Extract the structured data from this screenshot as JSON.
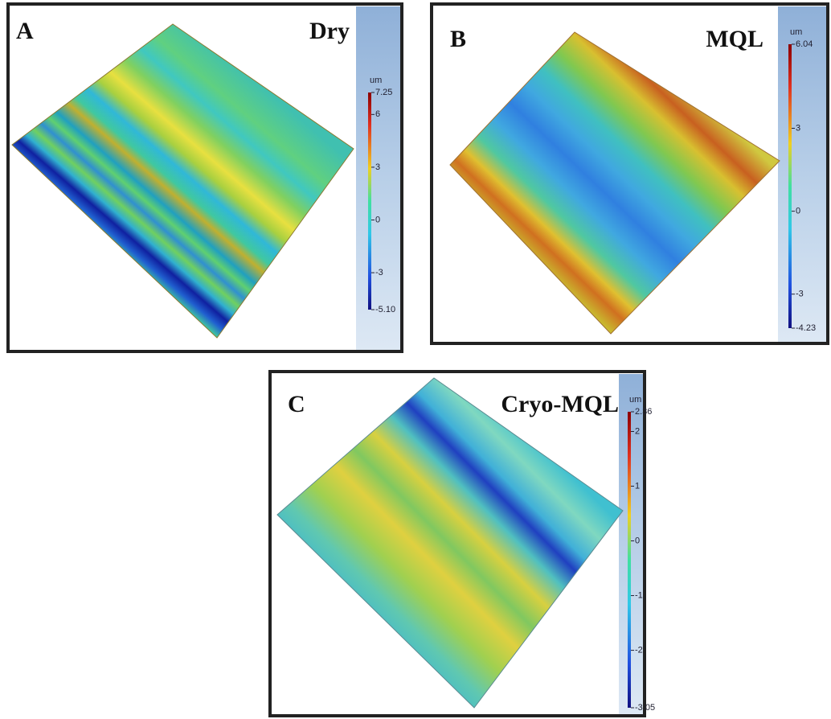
{
  "panels": [
    {
      "label": "A",
      "condition": "Dry",
      "colorbar": {
        "unit": "um",
        "ticks": [
          7.25,
          6,
          3,
          0,
          -3,
          {
            "value": -5.1,
            "label": "-5.10"
          }
        ]
      }
    },
    {
      "label": "B",
      "condition": "MQL",
      "colorbar": {
        "unit": "um",
        "ticks": [
          6.04,
          3,
          0,
          -3,
          -4.23
        ]
      }
    },
    {
      "label": "C",
      "condition": "Cryo-MQL",
      "colorbar": {
        "unit": "um",
        "ticks": [
          2.36,
          2,
          1,
          0,
          -1,
          -2,
          -3.05
        ]
      }
    }
  ]
}
